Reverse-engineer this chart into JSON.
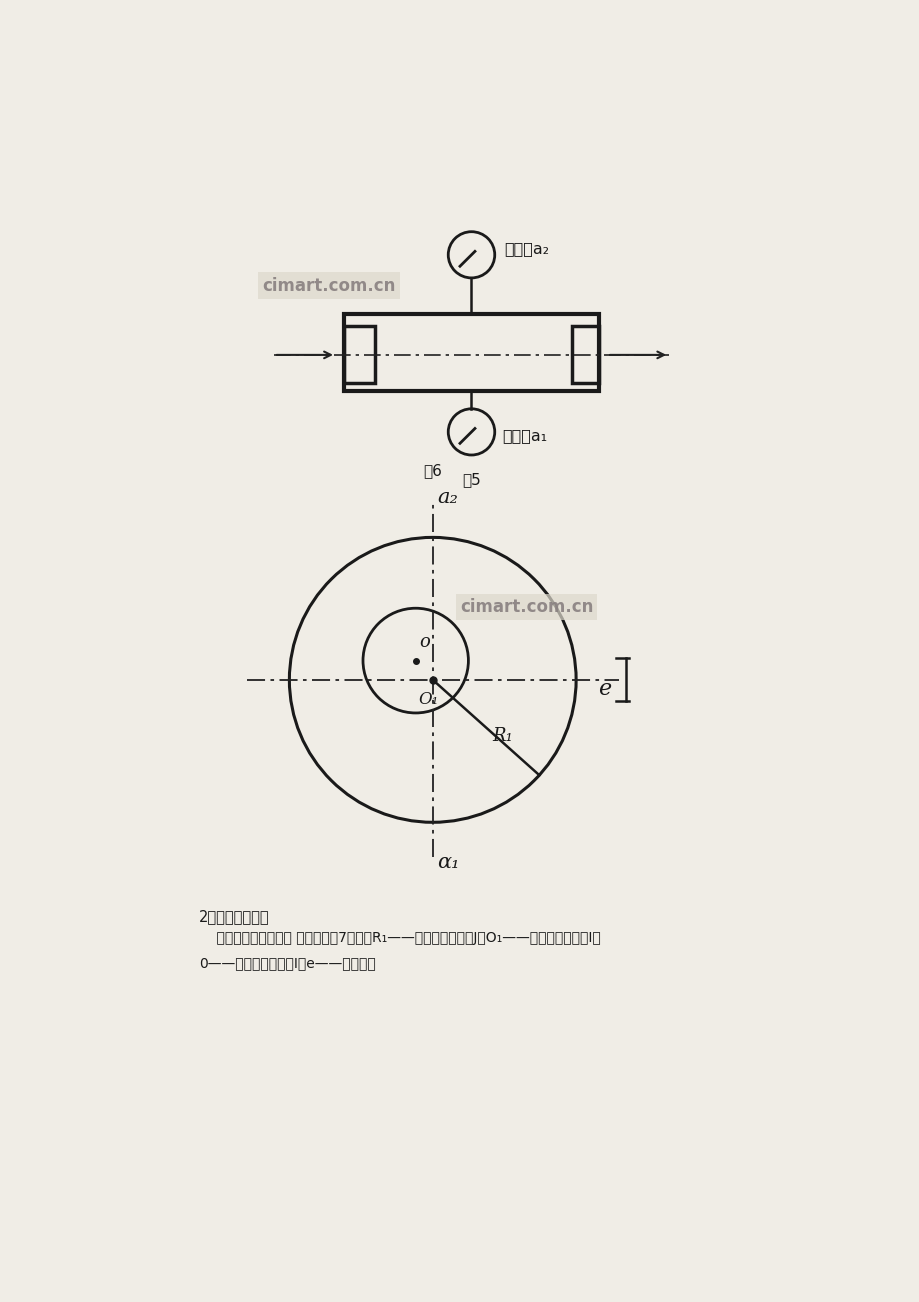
{
  "bg_color": "#f0ede6",
  "fig_width": 9.2,
  "fig_height": 13.02,
  "watermark1": "cimart.com.cn",
  "watermark2": "cimart.com.cn",
  "fig5_label": "图5",
  "fig6_label": "图6",
  "indicator_label_a2": "指示器a₂",
  "indicator_label_a1": "指示器a₁",
  "axis_label_top": "α₁",
  "axis_label_bot": "a₂",
  "label_e": "e",
  "label_O1": "O₁",
  "label_o": "o",
  "label_R1": "R₁",
  "text_title": "2、径向跳动误差",
  "text_body1": "    根据径向跳动概念， 作公差带图7。图中R₁——被测圆柱面半径J；O₁——被测圆柱面圆心I；",
  "text_body2": "0——基准圆柱面圆心I；e——偏心距。"
}
